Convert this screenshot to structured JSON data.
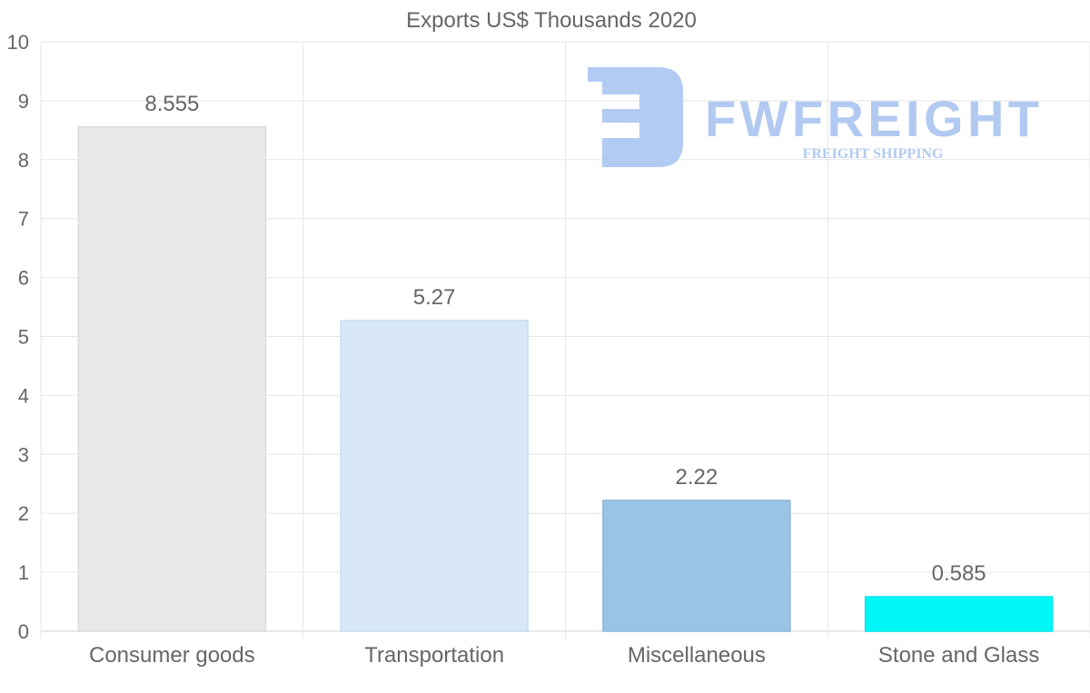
{
  "chart_data": {
    "type": "bar",
    "title": "Exports US$ Thousands 2020",
    "categories": [
      "Consumer goods",
      "Transportation",
      "Miscellaneous",
      "Stone and Glass"
    ],
    "values": [
      8.555,
      5.27,
      2.22,
      0.585
    ],
    "value_labels": [
      "8.555",
      "5.27",
      "2.22",
      "0.585"
    ],
    "colors": [
      "#e8e8e8",
      "#d8e8f8",
      "#9bc3e6",
      "#00f8f8"
    ],
    "border_colors": [
      "#dcdcdc",
      "#c8dcf2",
      "#8cb6dc",
      "#00e6e6"
    ],
    "xlabel": "",
    "ylabel": "",
    "ylim": [
      0,
      10
    ],
    "yticks": [
      "0",
      "1",
      "2",
      "3",
      "4",
      "5",
      "6",
      "7",
      "8",
      "9",
      "10"
    ],
    "grid": true,
    "legend": "none"
  },
  "watermark": {
    "brand": "FWFREIGHT",
    "tagline": "FREIGHT SHIPPING",
    "color": "#aec8f2"
  }
}
